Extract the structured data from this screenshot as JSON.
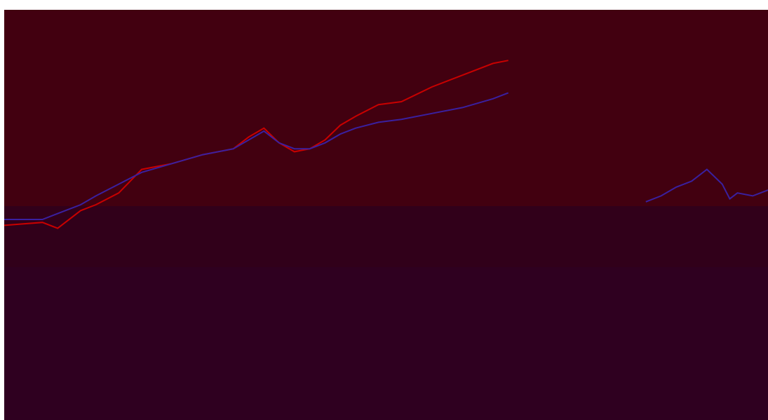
{
  "title": "",
  "colors": {
    "band_top": "#420010",
    "band_mid": "#31001a",
    "band_low": "#2f0020",
    "page_bg": "#ffffff",
    "series_red": "#c80000",
    "series_blue": "#3a20a0"
  },
  "chart_data": {
    "type": "line",
    "title": "",
    "xlabel": "",
    "ylabel": "",
    "legend": "none",
    "grid": false,
    "xlim": [
      0,
      100
    ],
    "ylim": [
      0,
      100
    ],
    "x": [
      0,
      5,
      7,
      10,
      12,
      15,
      18,
      22,
      26,
      30,
      32,
      34,
      36,
      38,
      40,
      42,
      44,
      46,
      49,
      52,
      56,
      60,
      64,
      66
    ],
    "series": [
      {
        "values": [
          33,
          34,
          32,
          38,
          40,
          44,
          52,
          54,
          57,
          59,
          63,
          66,
          61,
          58,
          59,
          62,
          67,
          70,
          74,
          75,
          80,
          84,
          88,
          89
        ]
      },
      {
        "values": [
          35,
          35,
          37,
          40,
          43,
          47,
          51,
          54,
          57,
          59,
          62,
          65,
          61,
          59,
          59,
          61,
          64,
          66,
          68,
          69,
          71,
          73,
          76,
          78
        ]
      }
    ],
    "secondary_series": {
      "x": [
        84,
        86,
        88,
        90,
        92,
        94,
        95,
        96,
        98,
        100
      ],
      "values": [
        41,
        43,
        46,
        48,
        52,
        47,
        42,
        44,
        43,
        45
      ]
    }
  }
}
